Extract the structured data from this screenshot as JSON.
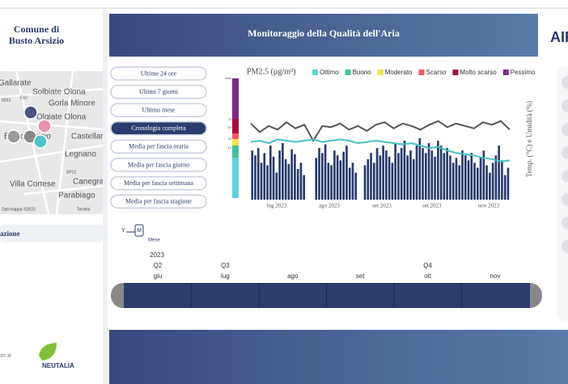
{
  "sidebar": {
    "municipality": [
      "Comune di",
      "Busto Arsizio"
    ],
    "section": "azione",
    "footer_text": "zic al",
    "partner": "NEUTALIA",
    "map": {
      "labels": [
        "Gallarate",
        "Solbiate Olona",
        "Gorla Minore",
        "Olgiate Olona",
        "Busto Arsizio",
        "Castellanza",
        "Legnano",
        "Villa Cortese",
        "Canegrate",
        "Parabiago",
        "SP12",
        "8033",
        "E62"
      ],
      "attribution": "Dati mappa ©2023",
      "terms": "Termini"
    }
  },
  "header": {
    "title": "Monitoraggio della Qualità dell'Aria",
    "brand": "AIR"
  },
  "buttons": [
    "Ultime 24 ore",
    "Ultimi 7 giorni",
    "Ultimo mese",
    "Cronologia completa",
    "Media per fascia oraria",
    "Media per fascia giorno",
    "Media per fascia settimana",
    "Media per fascia stagione"
  ],
  "active_button": 3,
  "chart": {
    "type": "bar",
    "title": "PM2.5 (µg/m³)",
    "y2_label": "Temp. (°C) e Umidità (%)",
    "legend": [
      {
        "name": "Ottimo",
        "color": "#5fd3dc"
      },
      {
        "name": "Buono",
        "color": "#46c09c"
      },
      {
        "name": "Moderato",
        "color": "#efe24a"
      },
      {
        "name": "Scarso",
        "color": "#ee5a5e"
      },
      {
        "name": "Molto scarso",
        "color": "#a0103e"
      },
      {
        "name": "Pessimo",
        "color": "#7e2a8c"
      }
    ],
    "scale_labels": [
      "Max",
      "75",
      "50",
      "25",
      "10"
    ],
    "x_labels": [
      "lug 2023",
      "ago 2023",
      "set 2023",
      "ott 2023",
      "nov 2023"
    ],
    "ylim": [
      0,
      100
    ],
    "bars": {
      "color": "#283a6e",
      "values": [
        40,
        36,
        42,
        30,
        38,
        28,
        44,
        35,
        22,
        40,
        46,
        33,
        29,
        41,
        37,
        25,
        30,
        20,
        null,
        null,
        null,
        34,
        42,
        38,
        45,
        30,
        28,
        40,
        36,
        32,
        39,
        44,
        26,
        30,
        22,
        null,
        null,
        28,
        33,
        38,
        30,
        42,
        36,
        44,
        40,
        35,
        30,
        46,
        38,
        42,
        48,
        36,
        40,
        33,
        44,
        50,
        42,
        38,
        46,
        40,
        35,
        48,
        44,
        38,
        42,
        36,
        30,
        34,
        28,
        40,
        36,
        32,
        38,
        30,
        26,
        34,
        40,
        28,
        22,
        30,
        36,
        44,
        32,
        20,
        26
      ]
    },
    "lines": [
      {
        "color": "#555555",
        "values": [
          62,
          55,
          60,
          57,
          63,
          58,
          61,
          48,
          60,
          59,
          62,
          57,
          60,
          56,
          61,
          63,
          58,
          62,
          60,
          57,
          61,
          64,
          59,
          62,
          60,
          58,
          63,
          61,
          64,
          57
        ]
      },
      {
        "color": "#45bfc6",
        "values": [
          47,
          48,
          46,
          49,
          48,
          47,
          48,
          49,
          47,
          48,
          49,
          48,
          46,
          47,
          48,
          47,
          46,
          45,
          46,
          44,
          42,
          43,
          40,
          38,
          37,
          36,
          34,
          33,
          31,
          32
        ]
      }
    ]
  },
  "timeline": {
    "toggle": [
      "Y",
      "M"
    ],
    "mode": "Mese",
    "year": "2023",
    "quarters": [
      "Q2",
      "Q3",
      null,
      null,
      "Q4",
      null
    ],
    "months": [
      "giu",
      "lug",
      "ago",
      "set",
      "ott",
      "nov"
    ]
  }
}
